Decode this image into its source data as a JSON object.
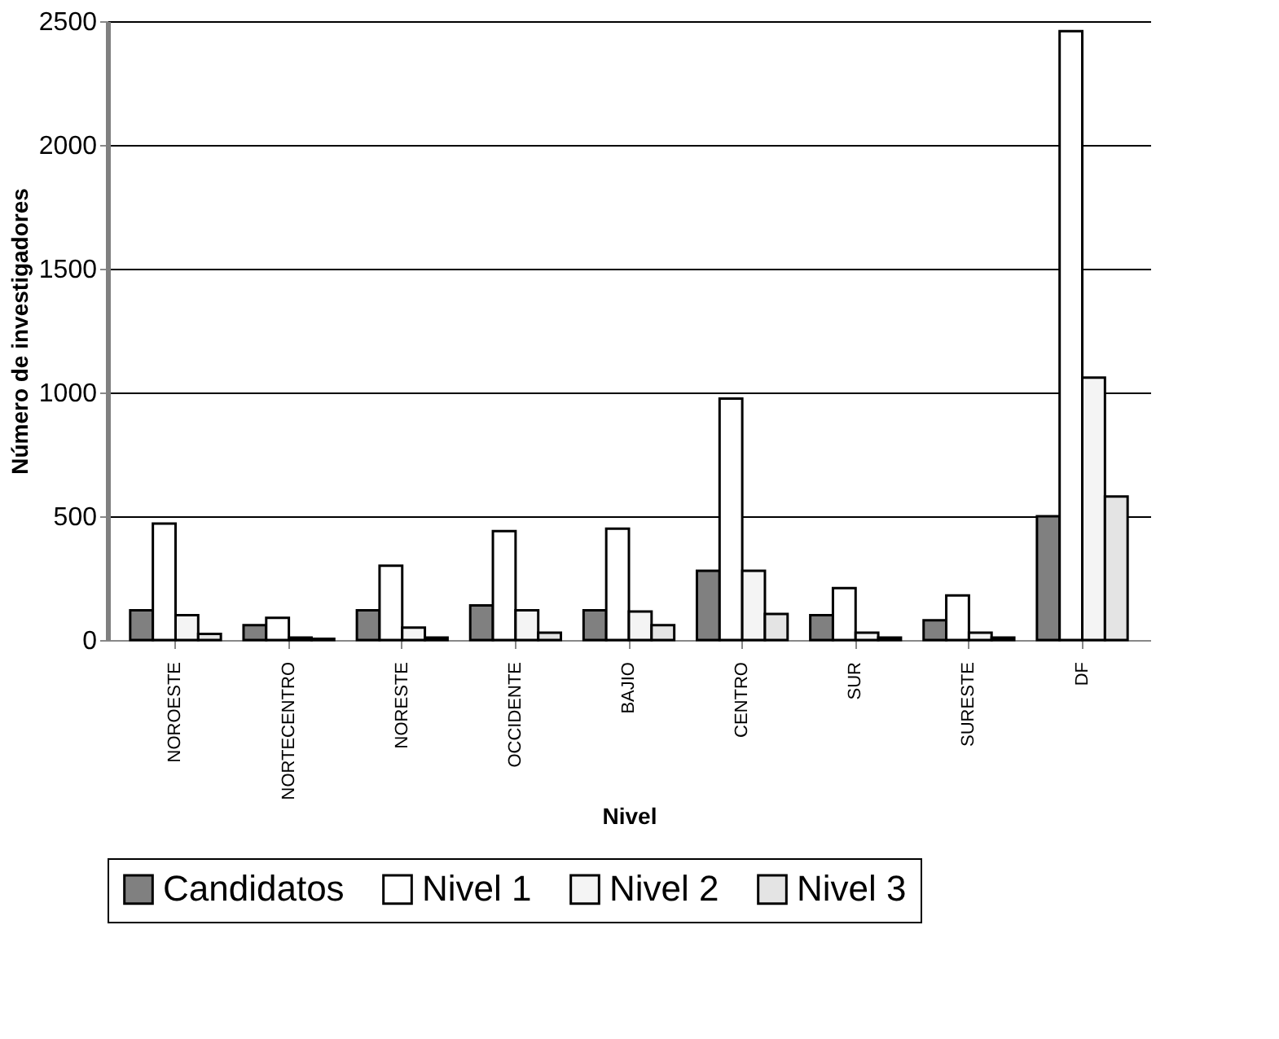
{
  "chart_data": {
    "type": "bar",
    "xlabel": "Nivel",
    "ylabel": "Número de investigadores",
    "categories": [
      "NOROESTE",
      "NORTECENTRO",
      "NORESTE",
      "OCCIDENTE",
      "BAJIO",
      "CENTRO",
      "SUR",
      "SURESTE",
      "DF"
    ],
    "series": [
      {
        "name": "Candidatos",
        "color": "#808080",
        "values": [
          120,
          60,
          120,
          140,
          120,
          280,
          100,
          80,
          500
        ]
      },
      {
        "name": "Nivel 1",
        "color": "#ffffff",
        "values": [
          470,
          90,
          300,
          440,
          450,
          975,
          210,
          180,
          2460
        ]
      },
      {
        "name": "Nivel 2",
        "color": "#f4f4f4",
        "values": [
          100,
          10,
          50,
          120,
          115,
          280,
          30,
          30,
          1060
        ]
      },
      {
        "name": "Nivel 3",
        "color": "#e4e4e4",
        "values": [
          25,
          5,
          10,
          30,
          60,
          105,
          10,
          10,
          580
        ]
      }
    ],
    "ylim": [
      0,
      2500
    ],
    "yticks": [
      0,
      500,
      1000,
      1500,
      2000,
      2500
    ],
    "grid": "y",
    "legend": "bottom"
  }
}
